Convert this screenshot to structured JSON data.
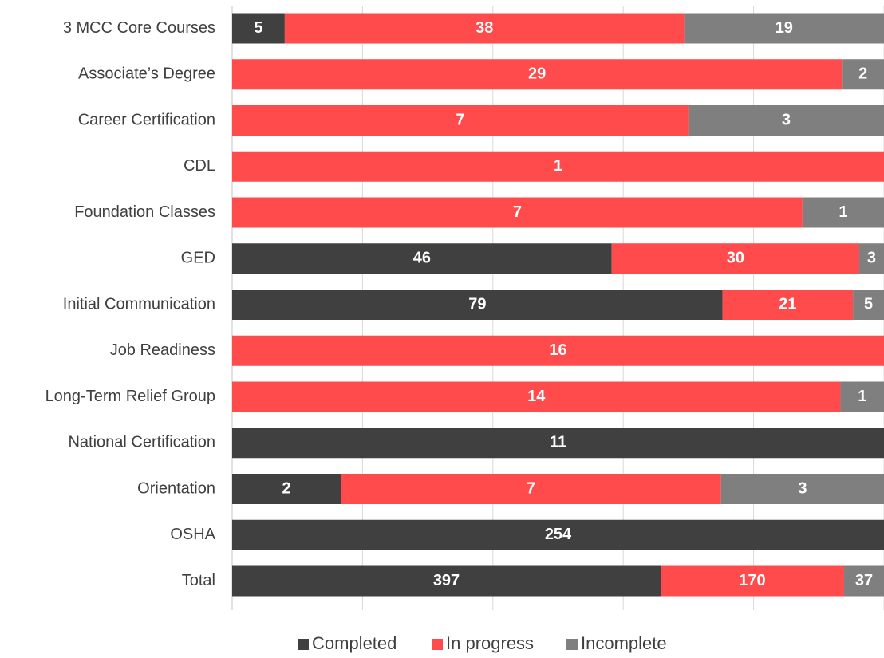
{
  "colors": {
    "completed": "#404040",
    "in_progress": "#ff4b4b",
    "incomplete": "#7f7f7f",
    "gridline": "#d9d9d9",
    "axis": "#d9d9d9",
    "label_text": "#404040"
  },
  "chart_data": {
    "type": "bar",
    "orientation": "horizontal",
    "stacking": "percent",
    "categories": [
      "3 MCC Core Courses",
      "Associate’s Degree",
      "Career Certification",
      "CDL",
      "Foundation Classes",
      "GED",
      "Initial Communication",
      "Job Readiness",
      "Long-Term Relief Group",
      "National Certification",
      "Orientation",
      "OSHA",
      "Total"
    ],
    "series": [
      {
        "name": "Completed",
        "color_key": "completed",
        "values": [
          5,
          0,
          0,
          0,
          0,
          46,
          79,
          0,
          0,
          11,
          2,
          254,
          397
        ]
      },
      {
        "name": "In progress",
        "color_key": "in_progress",
        "values": [
          38,
          29,
          7,
          1,
          7,
          30,
          21,
          16,
          14,
          0,
          7,
          0,
          170
        ]
      },
      {
        "name": "Incomplete",
        "color_key": "incomplete",
        "values": [
          19,
          2,
          3,
          0,
          1,
          3,
          5,
          0,
          1,
          0,
          3,
          0,
          37
        ]
      }
    ],
    "xlim": [
      0,
      1
    ],
    "grid": true,
    "legend_position": "bottom",
    "data_labels": true
  }
}
